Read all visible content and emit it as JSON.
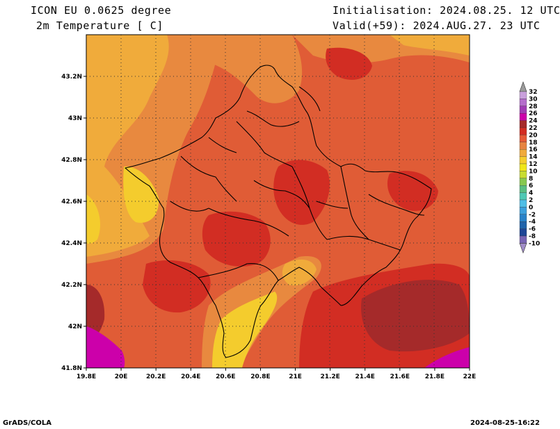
{
  "header": {
    "model_line": "ICON EU 0.0625 degree",
    "variable_line": "2m Temperature [ C]",
    "init_line": "Initialisation: 2024.08.25. 12 UTC",
    "valid_line": "Valid(+59): 2024.AUG.27. 23 UTC"
  },
  "footer": {
    "software": "GrADS/COLA",
    "timestamp": "2024-08-25-16:22"
  },
  "map": {
    "lon_ticks": [
      "19.8E",
      "20E",
      "20.2E",
      "20.4E",
      "20.6E",
      "20.8E",
      "21E",
      "21.2E",
      "21.4E",
      "21.6E",
      "21.8E",
      "22E"
    ],
    "lat_ticks": [
      "43.2N",
      "43N",
      "42.8N",
      "42.6N",
      "42.4N",
      "42.2N",
      "42N",
      "41.8N"
    ],
    "lon_range": [
      19.8,
      22.0
    ],
    "lat_range": [
      41.8,
      43.4
    ],
    "dominant_range_c": [
      16,
      22
    ]
  },
  "colorbar": {
    "labels": [
      "32",
      "30",
      "28",
      "26",
      "24",
      "22",
      "20",
      "18",
      "16",
      "14",
      "12",
      "10",
      "8",
      "6",
      "4",
      "2",
      "0",
      "-2",
      "-4",
      "-6",
      "-8",
      "-10"
    ],
    "colors": [
      "#9b9b9b",
      "#c9a0dc",
      "#b46ecb",
      "#a03cb4",
      "#cc00aa",
      "#a52a2a",
      "#d22d23",
      "#e55a37",
      "#e68441",
      "#f0aa3c",
      "#f5cd2d",
      "#f0e619",
      "#c8dc32",
      "#87c850",
      "#5abe82",
      "#50c8b4",
      "#50beE6",
      "#3ca0dc",
      "#2882c8",
      "#2064aa",
      "#1e4696",
      "#7864b4",
      "#a08cc8"
    ]
  }
}
